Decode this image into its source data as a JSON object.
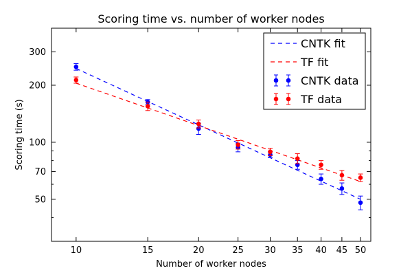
{
  "chart_data": {
    "type": "scatter",
    "title": "Scoring time vs. number of worker nodes",
    "xlabel": "Number of worker nodes",
    "ylabel": "Scoring time (s)",
    "x_scale": "log",
    "y_scale": "log",
    "xlim": [
      8.7,
      53
    ],
    "ylim": [
      30,
      400
    ],
    "x_ticks": [
      10,
      15,
      20,
      25,
      30,
      35,
      40,
      45,
      50
    ],
    "y_ticks": [
      50,
      70,
      100,
      200,
      300
    ],
    "x_minor_ticks": [],
    "y_minor_ticks": [
      40,
      60,
      80,
      90
    ],
    "grid": false,
    "legend_position": "top-right",
    "series": [
      {
        "name": "CNTK fit",
        "kind": "fit",
        "color": "#0000ff",
        "line_style": "dashed",
        "x": [
          10,
          50
        ],
        "y": [
          245,
          50
        ]
      },
      {
        "name": "TF fit",
        "kind": "fit",
        "color": "#ff0000",
        "line_style": "dashed",
        "x": [
          10,
          50
        ],
        "y": [
          205,
          62
        ]
      },
      {
        "name": "CNTK data",
        "kind": "data",
        "color": "#0000ff",
        "x": [
          10,
          15,
          20,
          25,
          30,
          35,
          40,
          45,
          50
        ],
        "y": [
          250,
          163,
          118,
          94,
          86,
          76,
          64,
          57,
          48
        ],
        "yerr": [
          10,
          5,
          8,
          5,
          3,
          4,
          4,
          4,
          4
        ]
      },
      {
        "name": "TF data",
        "kind": "data",
        "color": "#ff0000",
        "x": [
          10,
          15,
          20,
          25,
          30,
          35,
          40,
          45,
          50
        ],
        "y": [
          213,
          155,
          125,
          97,
          89,
          82,
          76,
          67,
          65
        ],
        "yerr": [
          8,
          8,
          6,
          5,
          4,
          5,
          4,
          4,
          3
        ]
      }
    ]
  }
}
